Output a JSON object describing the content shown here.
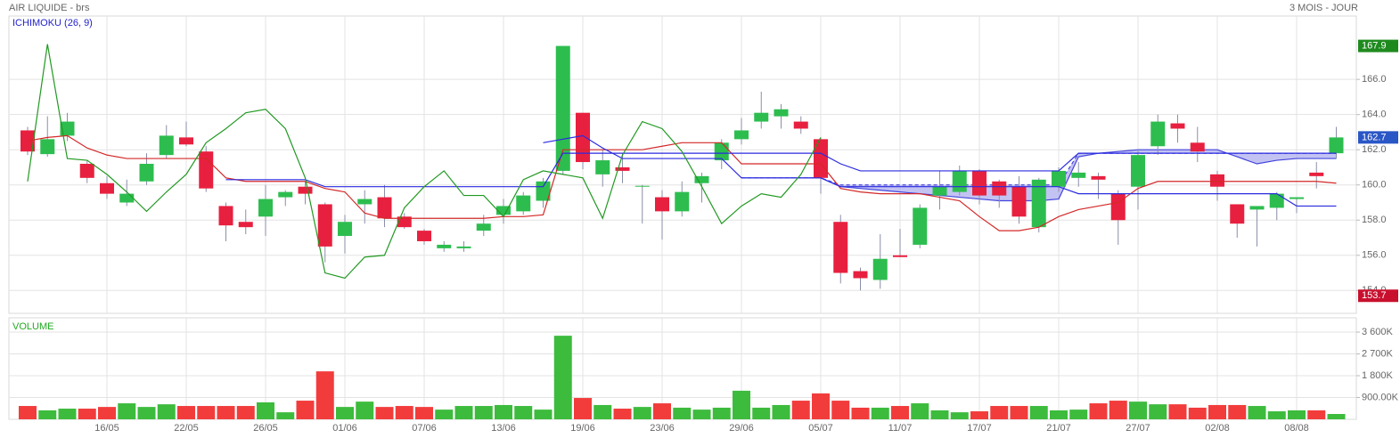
{
  "header": {
    "title": "AIR LIQUIDE - brs",
    "period": "3 MOIS - JOUR"
  },
  "chart_data": [
    {
      "type": "candlestick",
      "title": "ICHIMOKU (26, 9)",
      "up_color": "#2dbd4f",
      "down_color": "#e8203f",
      "grid": true,
      "categories": [
        null,
        null,
        null,
        null,
        "16/05",
        null,
        null,
        null,
        "22/05",
        null,
        null,
        null,
        "26/05",
        null,
        null,
        null,
        "01/06",
        null,
        null,
        null,
        "07/06",
        null,
        null,
        null,
        "13/06",
        null,
        null,
        null,
        "19/06",
        null,
        null,
        null,
        "23/06",
        null,
        null,
        null,
        "29/06",
        null,
        null,
        null,
        "05/07",
        null,
        null,
        null,
        "11/07",
        null,
        null,
        null,
        "17/07",
        null,
        null,
        null,
        "21/07",
        null,
        null,
        null,
        "27/07",
        null,
        null,
        null,
        "02/08",
        null,
        null,
        null,
        "08/08",
        null,
        null
      ],
      "open": [
        163.1,
        161.75,
        162.8,
        161.2,
        160.1,
        159.0,
        160.2,
        161.7,
        162.7,
        161.9,
        158.8,
        157.9,
        158.2,
        159.3,
        159.9,
        158.9,
        157.1,
        158.9,
        159.3,
        158.2,
        157.4,
        156.4,
        156.4,
        157.4,
        158.3,
        158.5,
        159.1,
        160.8,
        164.1,
        160.6,
        161.0,
        159.9,
        159.3,
        158.5,
        160.1,
        161.4,
        162.6,
        163.6,
        163.9,
        163.6,
        162.6,
        157.9,
        155.1,
        154.6,
        156.0,
        156.6,
        159.4,
        159.6,
        160.8,
        160.2,
        159.9,
        157.6,
        159.9,
        160.4,
        160.5,
        159.5,
        159.9,
        162.2,
        163.5,
        162.4,
        160.6,
        158.9,
        158.6,
        158.7,
        159.2,
        160.7,
        161.8
      ],
      "high": [
        163.3,
        163.9,
        164.1,
        161.4,
        160.5,
        160.3,
        161.8,
        163.4,
        163.6,
        162.2,
        159.0,
        158.6,
        160.0,
        159.7,
        160.2,
        159.0,
        158.3,
        159.7,
        160.0,
        158.4,
        157.5,
        156.8,
        156.8,
        158.3,
        159.2,
        159.6,
        160.4,
        167.9,
        164.1,
        162.0,
        161.8,
        160.0,
        159.7,
        160.2,
        160.7,
        162.6,
        163.8,
        165.3,
        164.6,
        163.9,
        162.7,
        158.3,
        155.3,
        157.2,
        157.5,
        158.9,
        160.8,
        161.1,
        160.9,
        160.3,
        160.5,
        160.4,
        161.0,
        161.3,
        160.7,
        159.7,
        162.0,
        164.0,
        164.0,
        163.3,
        160.8,
        158.9,
        158.8,
        159.6,
        159.3,
        161.3,
        163.3
      ],
      "low": [
        161.7,
        161.6,
        162.5,
        160.1,
        159.2,
        158.8,
        160.0,
        161.5,
        162.2,
        159.6,
        156.8,
        157.2,
        157.1,
        158.8,
        158.9,
        155.6,
        156.1,
        157.8,
        157.6,
        157.5,
        156.6,
        156.2,
        156.2,
        157.1,
        157.8,
        158.3,
        158.7,
        160.6,
        160.9,
        159.9,
        160.1,
        157.8,
        156.9,
        158.2,
        159.0,
        160.9,
        162.3,
        163.2,
        163.2,
        162.9,
        159.5,
        154.4,
        154.0,
        154.1,
        155.9,
        156.4,
        158.6,
        159.4,
        158.9,
        158.7,
        157.8,
        157.3,
        159.6,
        159.9,
        159.2,
        156.6,
        158.6,
        161.7,
        162.4,
        161.3,
        159.1,
        157.0,
        156.5,
        158.0,
        158.4,
        159.8,
        161.5
      ],
      "close": [
        161.9,
        162.6,
        163.6,
        160.4,
        159.5,
        159.5,
        161.2,
        162.8,
        162.3,
        159.8,
        157.7,
        157.6,
        159.2,
        159.6,
        159.5,
        156.5,
        157.9,
        159.2,
        158.1,
        157.6,
        156.8,
        156.6,
        156.5,
        157.8,
        158.8,
        159.4,
        160.2,
        167.9,
        161.3,
        161.4,
        160.8,
        159.95,
        158.5,
        159.6,
        160.5,
        162.4,
        163.1,
        164.1,
        164.3,
        163.2,
        160.4,
        155.0,
        154.7,
        155.8,
        155.9,
        158.7,
        159.9,
        160.8,
        159.4,
        159.4,
        158.2,
        160.3,
        160.8,
        160.7,
        160.3,
        158.0,
        161.7,
        163.6,
        163.2,
        161.9,
        159.9,
        157.8,
        158.8,
        159.5,
        159.3,
        160.5,
        162.7
      ],
      "lines": [
        {
          "color": "#d42828",
          "values": [
            162.5,
            162.7,
            162.8,
            162.1,
            161.7,
            161.5,
            161.5,
            161.5,
            161.5,
            161.5,
            160.4,
            160.2,
            160.2,
            160.2,
            160.2,
            159.8,
            159.6,
            158.4,
            158.1,
            158.1,
            158.1,
            158.1,
            158.1,
            158.1,
            158.2,
            158.2,
            158.3,
            162.0,
            162.0,
            162.0,
            162.0,
            162.0,
            162.2,
            162.4,
            162.4,
            162.4,
            161.2,
            161.2,
            161.2,
            161.2,
            161.2,
            159.8,
            159.6,
            159.5,
            159.5,
            159.5,
            159.3,
            159.1,
            158.2,
            157.4,
            157.4,
            157.6,
            158.2,
            158.6,
            158.8,
            159.0,
            159.8,
            160.2,
            160.2,
            160.2,
            160.2,
            160.2,
            160.2,
            160.2,
            160.2,
            160.2,
            160.1
          ]
        },
        {
          "color": "#2a2ae0",
          "values": [
            null,
            null,
            null,
            null,
            null,
            null,
            null,
            null,
            null,
            null,
            160.3,
            160.3,
            160.3,
            160.3,
            160.3,
            159.9,
            159.9,
            159.9,
            159.9,
            159.9,
            159.9,
            159.9,
            159.9,
            159.9,
            159.9,
            159.9,
            159.9,
            161.8,
            161.8,
            161.8,
            161.8,
            161.8,
            161.8,
            161.8,
            161.8,
            161.8,
            161.8,
            161.8,
            161.8,
            161.8,
            161.8,
            161.2,
            160.8,
            160.8,
            160.8,
            160.8,
            160.8,
            160.8,
            160.8,
            160.8,
            160.8,
            160.8,
            160.8,
            161.8,
            161.8,
            161.8,
            161.8,
            161.8,
            161.8,
            161.8,
            161.8,
            161.8,
            161.8,
            161.8,
            161.8,
            161.8,
            161.8
          ]
        },
        {
          "color": "#2a2ae0",
          "values": [
            null,
            null,
            null,
            null,
            null,
            null,
            null,
            null,
            null,
            null,
            null,
            null,
            null,
            null,
            null,
            null,
            null,
            null,
            null,
            null,
            null,
            null,
            null,
            null,
            null,
            null,
            162.4,
            162.6,
            162.8,
            162.1,
            161.5,
            161.5,
            161.5,
            161.5,
            161.5,
            161.5,
            160.4,
            160.4,
            160.4,
            160.4,
            160.4,
            159.9,
            159.9,
            159.9,
            159.9,
            159.9,
            159.9,
            159.9,
            159.9,
            159.9,
            159.9,
            159.9,
            159.9,
            159.5,
            159.5,
            159.5,
            159.5,
            159.5,
            159.5,
            159.5,
            159.5,
            159.5,
            159.5,
            159.5,
            158.8,
            158.8,
            158.8
          ]
        },
        {
          "color": "#229922",
          "values": [
            160.2,
            168.0,
            161.5,
            161.4,
            160.6,
            159.6,
            158.5,
            159.6,
            160.6,
            162.4,
            163.2,
            164.1,
            164.3,
            163.2,
            160.4,
            155.0,
            154.7,
            155.9,
            156.0,
            158.7,
            159.9,
            160.8,
            159.4,
            159.4,
            158.2,
            160.3,
            160.8,
            160.6,
            160.4,
            158.1,
            161.7,
            163.6,
            163.2,
            161.9,
            159.9,
            157.8,
            158.8,
            159.5,
            159.3,
            160.6,
            162.7,
            null,
            null,
            null,
            null,
            null,
            null,
            null,
            null,
            null,
            null,
            null,
            null,
            null,
            null,
            null,
            null,
            null,
            null,
            null,
            null,
            null,
            null,
            null,
            null,
            null,
            null
          ]
        }
      ],
      "cloud": {
        "color": "#4444dd",
        "fill": "#a9a9ee",
        "span_a": [
          null,
          null,
          null,
          null,
          null,
          null,
          null,
          null,
          null,
          null,
          null,
          null,
          null,
          null,
          null,
          null,
          null,
          null,
          null,
          null,
          null,
          null,
          null,
          null,
          null,
          null,
          null,
          null,
          null,
          null,
          null,
          null,
          null,
          null,
          null,
          null,
          160.4,
          160.4,
          160.4,
          160.4,
          160.4,
          159.9,
          159.8,
          159.7,
          159.6,
          159.5,
          159.4,
          159.3,
          159.2,
          159.1,
          159.1,
          159.1,
          159.2,
          161.6,
          161.8,
          161.9,
          162.0,
          162.0,
          162.0,
          162.0,
          162.0,
          161.6,
          161.2,
          161.4,
          161.5,
          161.5,
          161.5
        ],
        "span_b": [
          null,
          null,
          null,
          null,
          null,
          null,
          null,
          null,
          null,
          null,
          null,
          null,
          null,
          null,
          null,
          null,
          null,
          null,
          null,
          null,
          null,
          null,
          null,
          null,
          null,
          null,
          null,
          null,
          null,
          null,
          null,
          null,
          null,
          null,
          null,
          null,
          160.4,
          160.4,
          160.4,
          160.4,
          160.4,
          160.0,
          160.0,
          160.0,
          160.0,
          160.0,
          160.0,
          160.0,
          160.0,
          160.0,
          160.0,
          160.0,
          160.0,
          161.8,
          161.8,
          161.8,
          161.8,
          161.8,
          161.8,
          161.8,
          161.8,
          161.8,
          161.8,
          161.8,
          161.8,
          161.8,
          161.8
        ]
      },
      "ylim": [
        152.7,
        169.6
      ],
      "yticks": [
        {
          "value": 154,
          "label": "154.0"
        },
        {
          "value": 156,
          "label": "156.0"
        },
        {
          "value": 158,
          "label": "158.0"
        },
        {
          "value": 160,
          "label": "160.0"
        },
        {
          "value": 162,
          "label": "162.0"
        },
        {
          "value": 164,
          "label": "164.0"
        },
        {
          "value": 166,
          "label": "166.0"
        }
      ],
      "price_markers": [
        {
          "value": 167.9,
          "color": "#1e8a1e"
        },
        {
          "value": 162.7,
          "color": "#2a56c6"
        },
        {
          "value": 153.7,
          "color": "#c8102e"
        }
      ]
    },
    {
      "type": "bar",
      "title": "VOLUME",
      "up_color": "#3dbb3d",
      "down_color": "#f23c3c",
      "grid": true,
      "values": [
        550,
        370,
        440,
        440,
        510,
        660,
        510,
        620,
        550,
        550,
        550,
        550,
        700,
        290,
        770,
        1980,
        510,
        730,
        510,
        550,
        510,
        400,
        550,
        550,
        590,
        550,
        400,
        3450,
        880,
        590,
        440,
        510,
        660,
        480,
        400,
        480,
        1180,
        480,
        590,
        770,
        1070,
        770,
        480,
        480,
        550,
        660,
        370,
        290,
        330,
        550,
        550,
        550,
        370,
        400,
        660,
        770,
        730,
        620,
        620,
        480,
        590,
        590,
        550,
        330,
        370,
        370,
        220
      ],
      "ylim": [
        0,
        4190
      ],
      "yticks": [
        {
          "value": 900,
          "label": "900.00K"
        },
        {
          "value": 1800,
          "label": "1 800K"
        },
        {
          "value": 2700,
          "label": "2 700K"
        },
        {
          "value": 3600,
          "label": "3 600K"
        }
      ]
    }
  ]
}
